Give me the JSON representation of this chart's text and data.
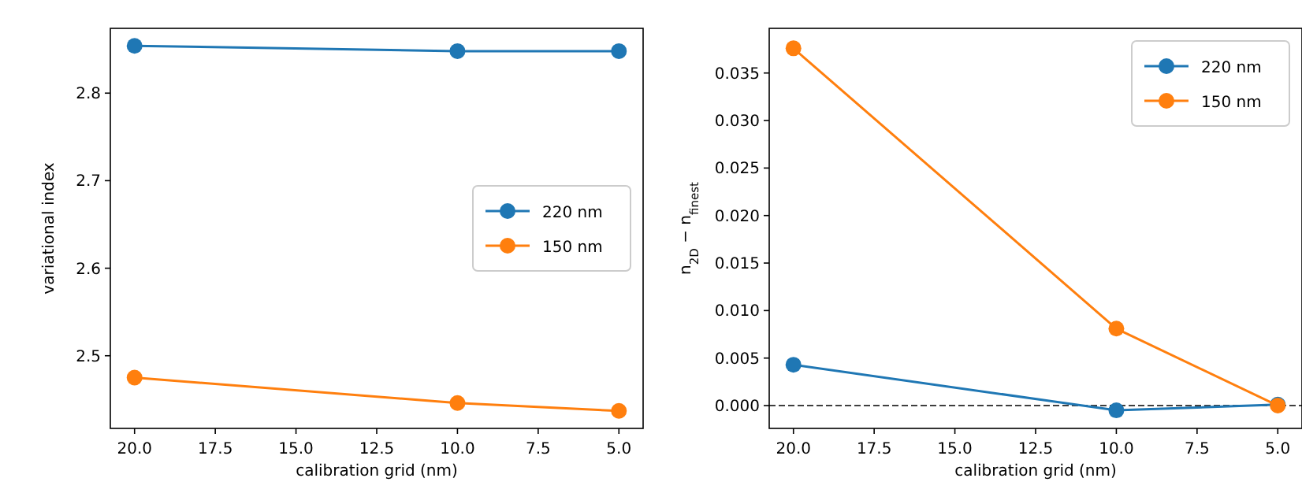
{
  "chart_data": [
    {
      "type": "line",
      "xlabel": "calibration grid (nm)",
      "ylabel": "variational index",
      "x": [
        20,
        10,
        5
      ],
      "series": [
        {
          "name": "220 nm",
          "color": "#1f77b4",
          "values": [
            2.854,
            2.848,
            2.848
          ]
        },
        {
          "name": "150 nm",
          "color": "#ff7f0e",
          "values": [
            2.475,
            2.446,
            2.437
          ]
        }
      ],
      "xlim": [
        20.75,
        4.25
      ],
      "xticks": [
        {
          "value": 20,
          "label": "20.0"
        },
        {
          "value": 17.5,
          "label": "17.5"
        },
        {
          "value": 15,
          "label": "15.0"
        },
        {
          "value": 12.5,
          "label": "12.5"
        },
        {
          "value": 10,
          "label": "10.0"
        },
        {
          "value": 7.5,
          "label": "7.5"
        },
        {
          "value": 5,
          "label": "5.0"
        }
      ],
      "ylim": [
        2.417,
        2.874
      ],
      "yticks": [
        2.5,
        2.6,
        2.7,
        2.8
      ],
      "marker": "circle",
      "legend": "right",
      "grid": false
    },
    {
      "type": "line",
      "xlabel": "calibration grid (nm)",
      "ylabel": "n$_{2D}$ − n$_{finest}$",
      "x": [
        20,
        10,
        5
      ],
      "series": [
        {
          "name": "220 nm",
          "color": "#1f77b4",
          "values": [
            0.0043,
            -0.0005,
            0.0001
          ]
        },
        {
          "name": "150 nm",
          "color": "#ff7f0e",
          "values": [
            0.0376,
            0.0081,
            0.0
          ]
        }
      ],
      "xlim": [
        20.75,
        4.25
      ],
      "xticks": [
        {
          "value": 20,
          "label": "20.0"
        },
        {
          "value": 17.5,
          "label": "17.5"
        },
        {
          "value": 15,
          "label": "15.0"
        },
        {
          "value": 12.5,
          "label": "12.5"
        },
        {
          "value": 10,
          "label": "10.0"
        },
        {
          "value": 7.5,
          "label": "7.5"
        },
        {
          "value": 5,
          "label": "5.0"
        }
      ],
      "ylim": [
        -0.0024,
        0.0397
      ],
      "yticks": [
        {
          "value": 0,
          "label": "0.000"
        },
        {
          "value": 0.005,
          "label": "0.005"
        },
        {
          "value": 0.01,
          "label": "0.010"
        },
        {
          "value": 0.015,
          "label": "0.015"
        },
        {
          "value": 0.02,
          "label": "0.020"
        },
        {
          "value": 0.025,
          "label": "0.025"
        },
        {
          "value": 0.03,
          "label": "0.030"
        },
        {
          "value": 0.035,
          "label": "0.035"
        }
      ],
      "ref_lines": [
        {
          "axis": "y",
          "value": 0,
          "color": "#000000",
          "line_style": "dashed"
        }
      ],
      "marker": "circle",
      "legend": "top right",
      "grid": false
    }
  ]
}
